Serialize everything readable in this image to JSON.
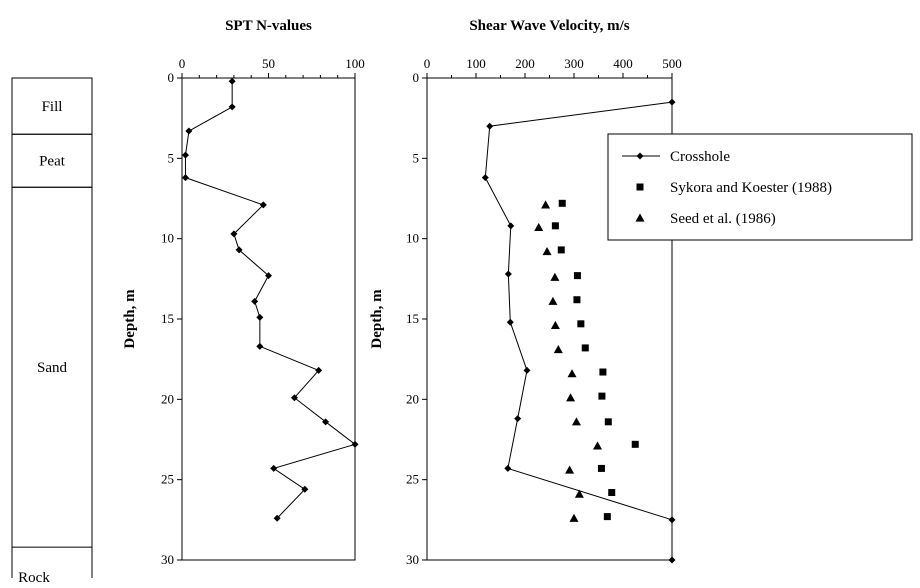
{
  "soil_column": {
    "layers": [
      {
        "name": "Fill",
        "top": 0,
        "bottom": 3.5
      },
      {
        "name": "Peat",
        "top": 3.5,
        "bottom": 6.8
      },
      {
        "name": "Sand",
        "top": 6.8,
        "bottom": 29.2
      }
    ],
    "base_label": "Rock"
  },
  "chart_data": [
    {
      "type": "line",
      "title": "SPT N-values",
      "xlabel": "",
      "ylabel": "Depth, m",
      "xlim": [
        0,
        100
      ],
      "ylim": [
        0,
        30
      ],
      "y_inverted": true,
      "x_ticks": [
        0,
        50,
        100
      ],
      "y_ticks": [
        0,
        5,
        10,
        15,
        20,
        25,
        30
      ],
      "series": [
        {
          "x": [
            29,
            29,
            4,
            2,
            2,
            47,
            30,
            33,
            50,
            42,
            45,
            45,
            79,
            65,
            83,
            100,
            53,
            71,
            55
          ],
          "y": [
            0.2,
            1.8,
            3.3,
            4.8,
            6.2,
            7.9,
            9.7,
            10.7,
            12.3,
            13.9,
            14.9,
            16.7,
            18.2,
            19.9,
            21.4,
            22.8,
            24.3,
            25.6,
            27.4
          ]
        }
      ]
    },
    {
      "type": "scatter",
      "title": "Shear Wave Velocity, m/s",
      "xlabel": "",
      "ylabel": "Depth, m",
      "xlim": [
        0,
        500
      ],
      "ylim": [
        0,
        30
      ],
      "y_inverted": true,
      "x_ticks": [
        0,
        100,
        200,
        300,
        400,
        500
      ],
      "y_ticks": [
        0,
        5,
        10,
        15,
        20,
        25,
        30
      ],
      "legend_position": "top-right",
      "series": [
        {
          "name": "Crosshole",
          "marker": "diamond",
          "line": true,
          "x": [
            500,
            128,
            119,
            171,
            166,
            170,
            204,
            185,
            165,
            500,
            500
          ],
          "y": [
            1.5,
            3.0,
            6.2,
            9.2,
            12.2,
            15.2,
            18.2,
            21.2,
            24.3,
            27.5,
            30.0
          ]
        },
        {
          "name": "Sykora and Koester (1988)",
          "marker": "square",
          "line": false,
          "x": [
            276,
            262,
            274,
            307,
            306,
            314,
            323,
            359,
            357,
            370,
            425,
            356,
            377,
            368
          ],
          "y": [
            7.8,
            9.2,
            10.7,
            12.3,
            13.8,
            15.3,
            16.8,
            18.3,
            19.8,
            21.4,
            22.8,
            24.3,
            25.8,
            27.3
          ]
        },
        {
          "name": "Seed et al. (1986)",
          "marker": "triangle",
          "line": false,
          "x": [
            242,
            228,
            245,
            261,
            257,
            262,
            268,
            296,
            293,
            305,
            348,
            291,
            311,
            300
          ],
          "y": [
            7.9,
            9.3,
            10.8,
            12.4,
            13.9,
            15.4,
            16.9,
            18.4,
            19.9,
            21.4,
            22.9,
            24.4,
            25.9,
            27.4
          ]
        }
      ]
    }
  ]
}
